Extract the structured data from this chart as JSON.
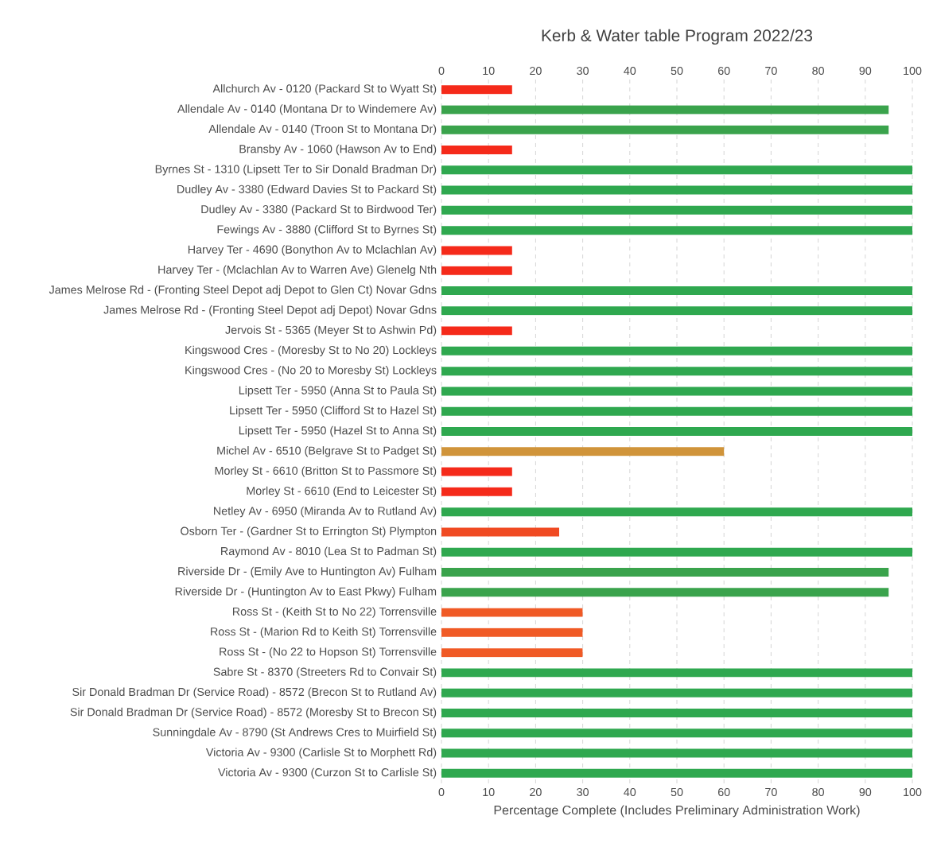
{
  "chart_data": {
    "type": "bar",
    "orientation": "horizontal",
    "title": "Kerb & Water table Program 2022/23",
    "xlabel": "Percentage Complete (Includes Preliminary Administration Work)",
    "categories": [
      "Allchurch Av - 0120 (Packard St to Wyatt St)",
      "Allendale Av - 0140 (Montana Dr to Windemere Av)",
      "Allendale Av - 0140 (Troon St to Montana Dr)",
      "Bransby Av - 1060 (Hawson Av to End)",
      "Byrnes St - 1310 (Lipsett Ter to Sir Donald Bradman Dr)",
      "Dudley Av - 3380 (Edward Davies St to Packard St)",
      "Dudley Av - 3380 (Packard St to Birdwood Ter)",
      "Fewings Av - 3880 (Clifford St to Byrnes St)",
      "Harvey Ter - 4690 (Bonython Av to Mclachlan Av)",
      "Harvey Ter - (Mclachlan Av to Warren Ave) Glenelg Nth",
      "James Melrose Rd - (Fronting Steel Depot adj Depot to Glen Ct) Novar Gdns",
      "James Melrose Rd - (Fronting Steel Depot adj Depot) Novar Gdns",
      "Jervois St - 5365 (Meyer St to Ashwin Pd)",
      "Kingswood Cres - (Moresby St to No 20) Lockleys",
      "Kingswood Cres - (No 20 to Moresby St) Lockleys",
      "Lipsett Ter - 5950 (Anna St to Paula St)",
      "Lipsett Ter - 5950 (Clifford St to Hazel St)",
      "Lipsett Ter - 5950 (Hazel St to Anna St)",
      "Michel Av - 6510 (Belgrave St to Padget St)",
      "Morley St - 6610 (Britton St to Passmore St)",
      "Morley St - 6610 (End to Leicester St)",
      "Netley Av - 6950 (Miranda Av to Rutland Av)",
      "Osborn Ter - (Gardner St to Errington St) Plympton",
      "Raymond Av - 8010 (Lea St to Padman St)",
      "Riverside Dr - (Emily Ave to Huntington Av) Fulham",
      "Riverside Dr - (Huntington Av to East Pkwy) Fulham",
      "Ross St - (Keith St to No 22) Torrensville",
      "Ross St - (Marion Rd to Keith St) Torrensville",
      "Ross St - (No 22 to Hopson St) Torrensville",
      "Sabre St - 8370 (Streeters Rd to Convair St)",
      "Sir Donald Bradman Dr (Service Road) - 8572 (Brecon St to Rutland Av)",
      "Sir Donald Bradman Dr (Service Road) - 8572 (Moresby St to Brecon St)",
      "Sunningdale Av - 8790 (St Andrews Cres to Muirfield St)",
      "Victoria Av - 9300 (Carlisle St to Morphett Rd)",
      "Victoria Av - 9300 (Curzon St to Carlisle St)"
    ],
    "values": [
      15,
      95,
      95,
      15,
      100,
      100,
      100,
      100,
      15,
      15,
      100,
      100,
      15,
      100,
      100,
      100,
      100,
      100,
      60,
      15,
      15,
      100,
      25,
      100,
      95,
      95,
      30,
      30,
      30,
      100,
      100,
      100,
      100,
      100,
      100
    ],
    "colors": [
      "#f52a1a",
      "#3aa34c",
      "#3aa34c",
      "#f52a1a",
      "#2fa84f",
      "#2fa84f",
      "#2fa84f",
      "#2fa84f",
      "#f52a1a",
      "#f52a1a",
      "#2fa84f",
      "#2fa84f",
      "#f52a1a",
      "#2fa84f",
      "#2fa84f",
      "#2fa84f",
      "#2fa84f",
      "#2fa84f",
      "#d0943a",
      "#f52a1a",
      "#f52a1a",
      "#2fa84f",
      "#f04a22",
      "#2fa84f",
      "#3aa34c",
      "#3aa34c",
      "#f05a25",
      "#f05a25",
      "#f05a25",
      "#2fa84f",
      "#2fa84f",
      "#2fa84f",
      "#2fa84f",
      "#2fa84f",
      "#2fa84f"
    ],
    "xlim": [
      0,
      100
    ],
    "xticks": [
      0,
      10,
      20,
      30,
      40,
      50,
      60,
      70,
      80,
      90,
      100
    ],
    "x2lim": [
      0,
      100
    ],
    "x2ticks": [
      0,
      10,
      20,
      30,
      40,
      50,
      60,
      70,
      80,
      90,
      100
    ],
    "grid": "x"
  }
}
